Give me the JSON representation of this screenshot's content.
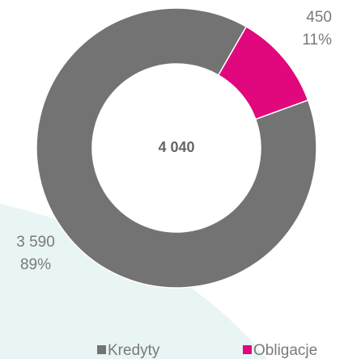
{
  "chart_data": {
    "type": "donut",
    "categories": [
      "Kredyty",
      "Obligacje"
    ],
    "values": [
      3590,
      450
    ],
    "value_labels": [
      "3 590",
      "450"
    ],
    "percent_labels": [
      "89%",
      "11%"
    ],
    "colors": [
      "#737373",
      "#e0087c"
    ],
    "center_label": "4 040",
    "legend": "bottom"
  }
}
